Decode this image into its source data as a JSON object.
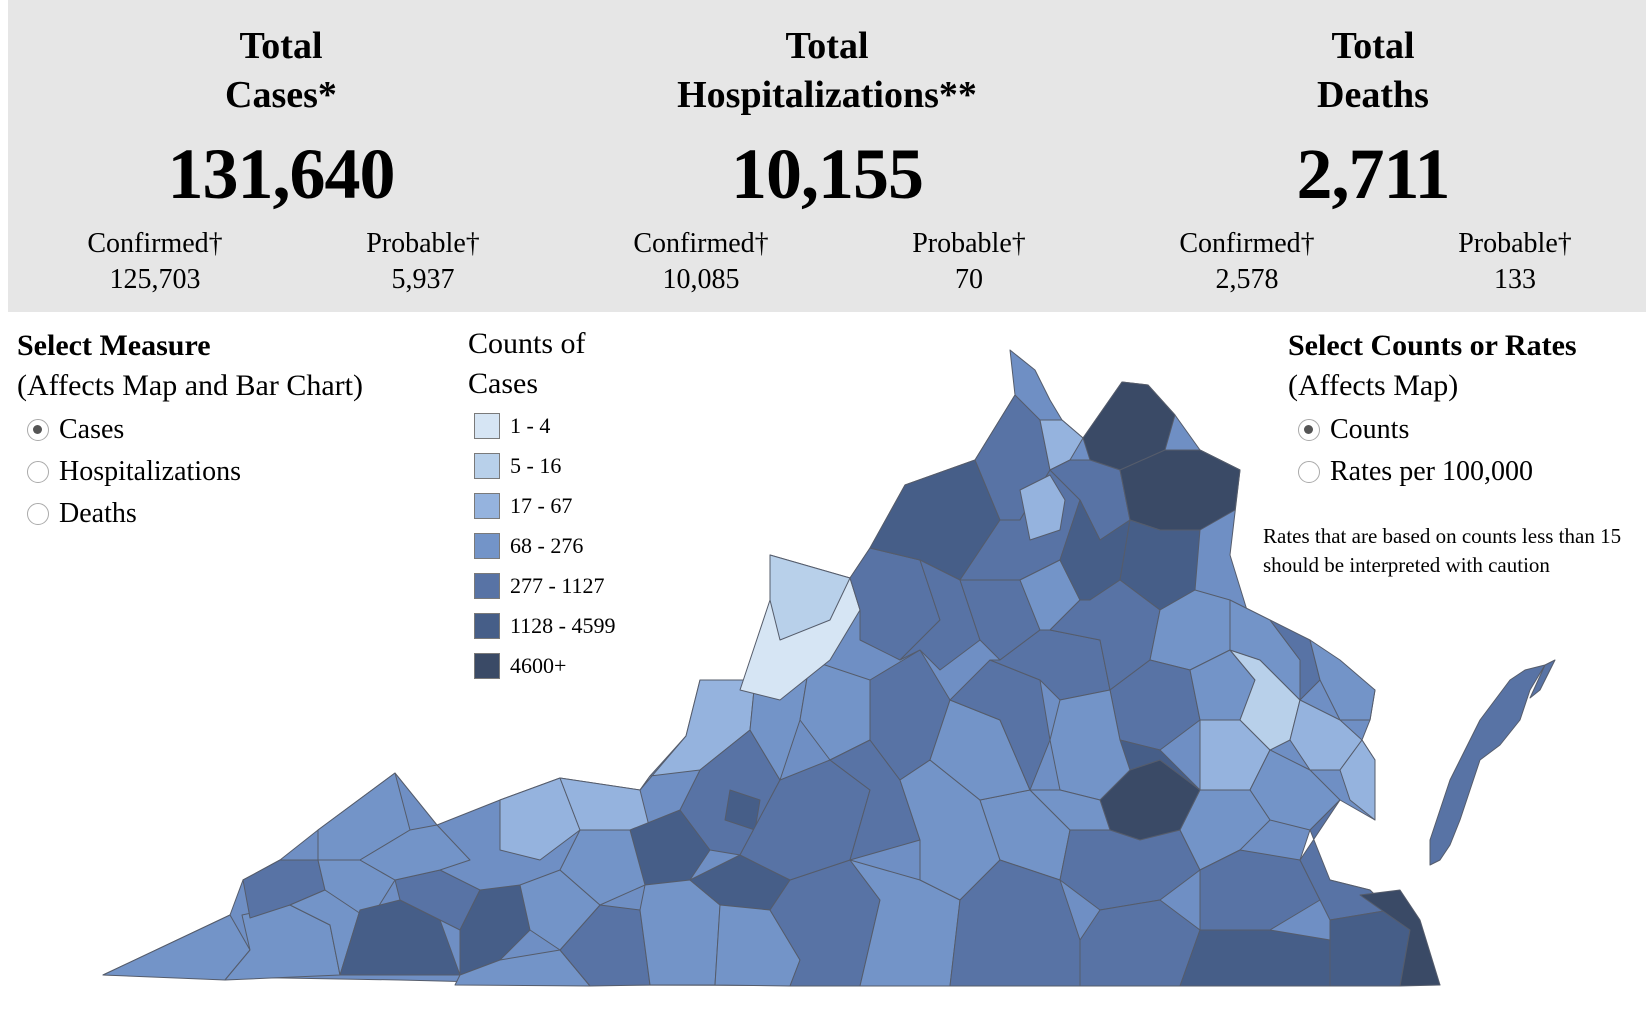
{
  "stats": [
    {
      "title_line1": "Total",
      "title_line2": "Cases*",
      "total": "131,640",
      "confirmed_label": "Confirmed†",
      "confirmed_value": "125,703",
      "probable_label": "Probable†",
      "probable_value": "5,937"
    },
    {
      "title_line1": "Total",
      "title_line2": "Hospitalizations**",
      "total": "10,155",
      "confirmed_label": "Confirmed†",
      "confirmed_value": "10,085",
      "probable_label": "Probable†",
      "probable_value": "70"
    },
    {
      "title_line1": "Total",
      "title_line2": "Deaths",
      "total": "2,711",
      "confirmed_label": "Confirmed†",
      "confirmed_value": "2,578",
      "probable_label": "Probable†",
      "probable_value": "133"
    }
  ],
  "measure_panel": {
    "heading": "Select Measure",
    "subheading": "(Affects Map and Bar Chart)",
    "options": [
      {
        "label": "Cases",
        "selected": true
      },
      {
        "label": "Hospitalizations",
        "selected": false
      },
      {
        "label": "Deaths",
        "selected": false
      }
    ]
  },
  "legend": {
    "title_line1": "Counts of",
    "title_line2": "Cases",
    "bins": [
      {
        "label": "1 - 4",
        "color": "#d6e5f4"
      },
      {
        "label": "5 - 16",
        "color": "#b8d0ea"
      },
      {
        "label": "17 - 67",
        "color": "#95b3de"
      },
      {
        "label": "68 - 276",
        "color": "#7394c8"
      },
      {
        "label": "277 - 1127",
        "color": "#5873a5"
      },
      {
        "label": "1128 - 4599",
        "color": "#465e88"
      },
      {
        "label": "4600+",
        "color": "#3a4a66"
      }
    ]
  },
  "counts_panel": {
    "heading": "Select Counts or Rates",
    "subheading": "(Affects Map)",
    "options": [
      {
        "label": "Counts",
        "selected": true
      },
      {
        "label": "Rates per 100,000",
        "selected": false
      }
    ],
    "note": "Rates that are based on counts less than 15 should be interpreted with caution"
  }
}
